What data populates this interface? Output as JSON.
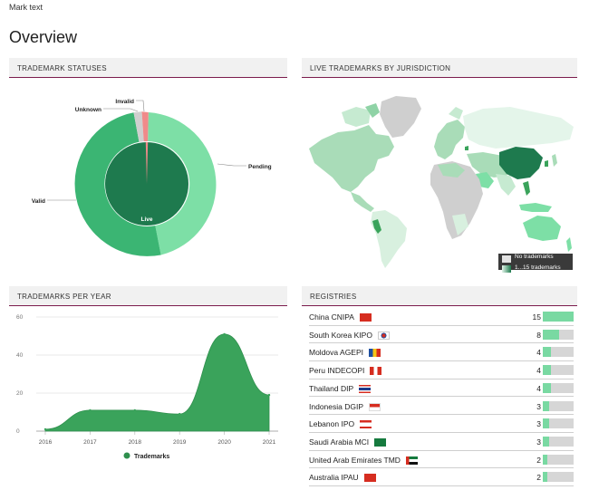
{
  "mark_text": "Mark text",
  "page_title": "Overview",
  "colors": {
    "accent": "#7b1c4d",
    "live": "#1e7a4e",
    "valid": "#3bb573",
    "pending": "#7ddfa6",
    "unknown": "#cfcfcf",
    "invalid": "#f08a8a",
    "area": "#3aa35b"
  },
  "statuses": {
    "title": "TRADEMARK STATUSES",
    "labels": {
      "invalid": "Invalid",
      "unknown": "Unknown",
      "pending": "Pending",
      "valid": "Valid",
      "live": "Live"
    }
  },
  "map": {
    "title": "LIVE TRADEMARKS BY JURISDICTION",
    "legend": {
      "none": "No trademarks",
      "range": "1...15 trademarks"
    }
  },
  "per_year": {
    "title": "TRADEMARKS PER YEAR",
    "legend": "Trademarks"
  },
  "chart_data": {
    "type": "area",
    "x": [
      "2016",
      "2017",
      "2018",
      "2019",
      "2020",
      "2021"
    ],
    "series": [
      {
        "name": "Trademarks",
        "values": [
          1,
          11,
          11,
          9,
          51,
          19
        ]
      }
    ],
    "ylim": [
      0,
      60
    ],
    "yticks": [
      0,
      20,
      40,
      60
    ],
    "grid": true,
    "legend_position": "bottom"
  },
  "registries": {
    "title": "REGISTRIES",
    "rows": [
      {
        "name": "China CNIPA",
        "flag": "cn",
        "count": "15",
        "value": 15
      },
      {
        "name": "South Korea KIPO",
        "flag": "kr",
        "count": "8",
        "value": 8
      },
      {
        "name": "Moldova AGEPI",
        "flag": "md",
        "count": "4",
        "value": 4
      },
      {
        "name": "Peru INDECOPI",
        "flag": "pe",
        "count": "4",
        "value": 4
      },
      {
        "name": "Thailand DIP",
        "flag": "th",
        "count": "4",
        "value": 4
      },
      {
        "name": "Indonesia DGIP",
        "flag": "id",
        "count": "3",
        "value": 3
      },
      {
        "name": "Lebanon IPO",
        "flag": "lb",
        "count": "3",
        "value": 3
      },
      {
        "name": "Saudi Arabia MCI",
        "flag": "sa",
        "count": "3",
        "value": 3
      },
      {
        "name": "United Arab Emirates TMD",
        "flag": "ae",
        "count": "2",
        "value": 2
      },
      {
        "name": "Australia IPAU",
        "flag": "au",
        "count": "2",
        "value": 2
      }
    ],
    "max": 15
  }
}
